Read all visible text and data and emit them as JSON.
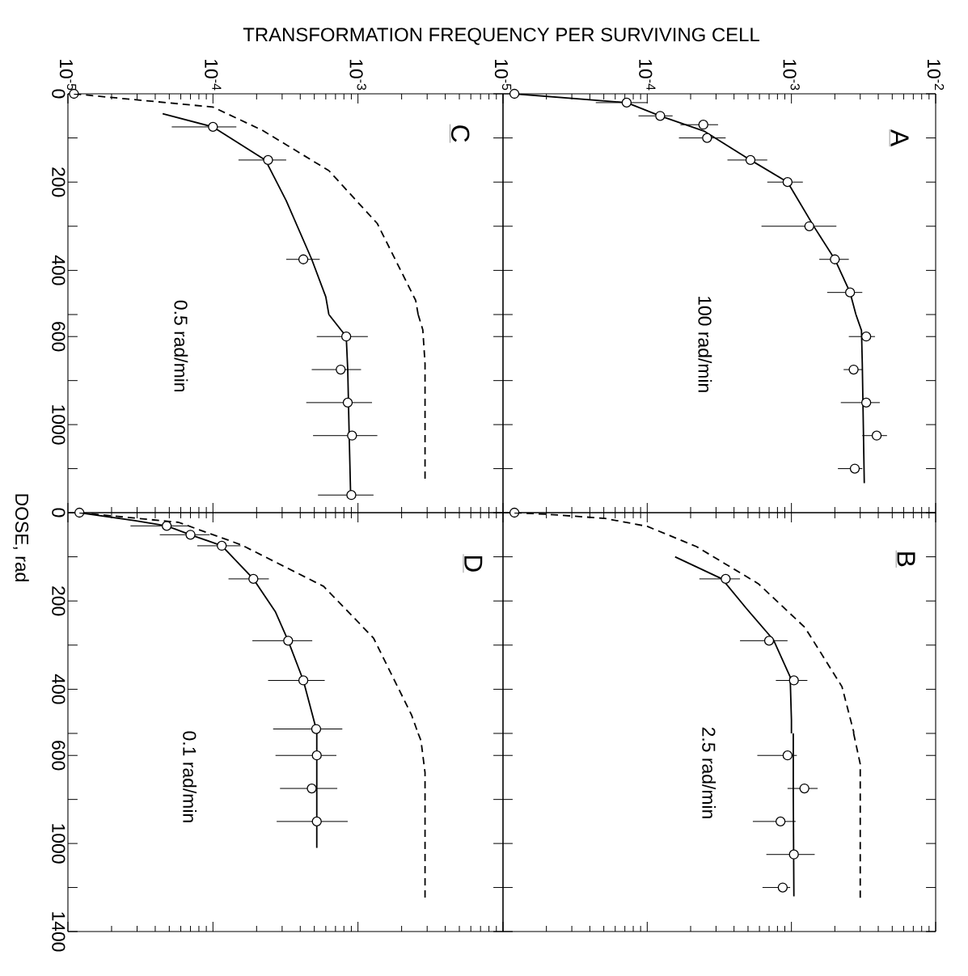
{
  "chart_data": [
    {
      "type": "line",
      "title": "C",
      "xlabel": "TRANSFORMATION FREQUENCY PER SURVIVING CELL",
      "log": "x",
      "xlim": [
        1e-05,
        0.01
      ],
      "ylim": [
        500,
        0
      ],
      "xticks": [
        {
          "value": 1e-05,
          "label": "10$^{-5}$"
        },
        {
          "value": 0.0001,
          "label": "10$^{-4}$"
        },
        {
          "value": 0.001,
          "label": "10$^{-3}$"
        }
      ],
      "yticks": [
        0,
        {
          "value": 100,
          "label": null
        },
        200,
        {
          "value": 300,
          "label": null
        },
        400,
        {
          "value": 500,
          "label": null
        }
      ],
      "series": [
        {
          "type": "line",
          "line_style": "solid",
          "marker": "none",
          "color": "#000000",
          "x": [
            4.5e-05,
            0.0001,
            0.00023,
            0.00032,
            0.00048,
            0.0006,
            0.00063
          ],
          "values": [
            45,
            75,
            150,
            242,
            375,
            460,
            500
          ]
        },
        {
          "type": "scatter",
          "marker": "circle",
          "color": "#000000",
          "x": [
            1.1e-05,
            0.0001,
            0.00024,
            0.00042
          ],
          "values": [
            0,
            75,
            150,
            375
          ],
          "xerrors": [
            null,
            [
              5.2e-05,
              0.000145
            ],
            [
              0.00015,
              0.00032
            ],
            [
              0.00032,
              0.000545
            ]
          ]
        },
        {
          "type": "line",
          "line_style": "dashed",
          "marker": "none",
          "color": "#000000",
          "x": [
            1.1e-05,
            1.95e-05,
            0.0001,
            0.00022,
            0.00063,
            0.00136,
            0.0025,
            0.0026
          ],
          "values": [
            0,
            8,
            30,
            83,
            174,
            294,
            468,
            500
          ]
        }
      ]
    },
    {
      "type": "line",
      "title": "A",
      "log": "x",
      "xlim": [
        1e-05,
        0.01
      ],
      "ylim": [
        500,
        0
      ],
      "tick_labels": "x",
      "xticks": [
        {
          "value": 1e-05,
          "label": "10$^{-5}$"
        },
        {
          "value": 0.0001,
          "label": "10$^{-4}$"
        },
        {
          "value": 0.001,
          "label": "10$^{-3}$"
        },
        {
          "value": 0.01,
          "label": "10$^{-2}$"
        }
      ],
      "yticks": [
        0,
        {
          "value": 100,
          "label": null
        },
        200,
        {
          "value": 300,
          "label": null
        },
        400,
        {
          "value": 500,
          "label": null
        }
      ],
      "series": [
        {
          "type": "line",
          "line_style": "solid",
          "marker": "none",
          "color": "#000000",
          "x": [
            1.2e-05,
            7.2e-05,
            0.000123,
            0.00025,
            0.00052,
            0.00094,
            0.00144,
            0.002,
            0.00255,
            0.0028
          ],
          "values": [
            0,
            20,
            50,
            85,
            150,
            200,
            302,
            375,
            450,
            500
          ]
        },
        {
          "type": "scatter",
          "marker": "circle",
          "color": "#000000",
          "x": [
            1.2e-05,
            7.2e-05,
            0.000123,
            0.000245,
            0.00026,
            0.00052,
            0.00094,
            0.00133,
            0.002,
            0.00255
          ],
          "values": [
            0,
            20,
            50,
            70,
            100,
            150,
            200,
            300,
            375,
            450
          ],
          "xerrors": [
            null,
            [
              4.4e-05,
              0.0001
            ],
            [
              8.7e-05,
              0.00015
            ],
            [
              0.00017,
              0.00031
            ],
            [
              0.000166,
              0.00035
            ],
            [
              0.00036,
              0.00068
            ],
            [
              0.00068,
              0.0012
            ],
            [
              0.00062,
              0.00205
            ],
            [
              0.00156,
              0.0025
            ],
            [
              0.00177,
              0.0031
            ]
          ]
        }
      ]
    },
    {
      "type": "line",
      "annotations": [
        "0.5 rad/min"
      ],
      "log": "x",
      "xlim": [
        1e-05,
        0.01
      ],
      "ylim": [
        1400,
        500
      ],
      "tick_labels": "y",
      "xticks": [
        {
          "value": 1e-05,
          "label": null
        },
        {
          "value": 0.0001,
          "label": null
        },
        {
          "value": 0.001,
          "label": null
        }
      ],
      "yticks": [
        600,
        {
          "value": 800,
          "label": null
        },
        1000,
        {
          "value": 1200,
          "label": null
        },
        {
          "value": 1400,
          "label": null
        }
      ],
      "series": [
        {
          "type": "line",
          "line_style": "solid",
          "marker": "none",
          "color": "#000000",
          "x": [
            0.00063,
            0.00083,
            0.00085,
            0.00087,
            0.00089
          ],
          "values": [
            500,
            600,
            750,
            1050,
            1320
          ]
        },
        {
          "type": "scatter",
          "marker": "circle",
          "color": "#000000",
          "x": [
            0.00083,
            0.00076,
            0.00085,
            0.00091,
            0.0009
          ],
          "values": [
            600,
            750,
            900,
            1050,
            1320
          ],
          "xerrors": [
            [
              0.00052,
              0.00117
            ],
            [
              0.00048,
              0.00105
            ],
            [
              0.00044,
              0.00125
            ],
            [
              0.00049,
              0.00136
            ],
            [
              0.00053,
              0.00128
            ]
          ]
        },
        {
          "type": "line",
          "line_style": "dashed",
          "marker": "none",
          "color": "#000000",
          "x": [
            0.0026,
            0.0028,
            0.0029,
            0.0029
          ],
          "values": [
            500,
            570,
            723,
            1250
          ]
        }
      ]
    },
    {
      "type": "line",
      "annotations": [
        "100 rad/min"
      ],
      "log": "x",
      "xlim": [
        1e-05,
        0.01
      ],
      "ylim": [
        1400,
        500
      ],
      "tick_labels": false,
      "xticks": [
        {
          "value": 1e-05,
          "label": null
        },
        {
          "value": 0.0001,
          "label": null
        },
        {
          "value": 0.001,
          "label": null
        },
        {
          "value": 0.01,
          "label": null
        }
      ],
      "yticks": [
        600,
        {
          "value": 800,
          "label": null
        },
        1000,
        {
          "value": 1200,
          "label": null
        },
        {
          "value": 1400,
          "label": null
        }
      ],
      "series": [
        {
          "type": "line",
          "line_style": "solid",
          "marker": "none",
          "color": "#000000",
          "x": [
            0.0028,
            0.00306,
            0.0031,
            0.0032
          ],
          "values": [
            500,
            572,
            723,
            1266
          ]
        },
        {
          "type": "scatter",
          "marker": "circle",
          "color": "#000000",
          "x": [
            0.0033,
            0.0027,
            0.0033,
            0.0039,
            0.00275
          ],
          "values": [
            600,
            750,
            900,
            1050,
            1200
          ],
          "xerrors": [
            [
              0.0025,
              0.0038
            ],
            [
              0.0023,
              0.0031
            ],
            [
              0.0022,
              0.0041
            ],
            [
              0.0031,
              0.0046
            ],
            [
              0.0021,
              0.0031
            ]
          ]
        }
      ]
    },
    {
      "type": "line",
      "title": "D",
      "ylabel": "DOSE, rad",
      "log": "x",
      "xlim": [
        1e-05,
        0.01
      ],
      "ylim": [
        500,
        0
      ],
      "tick_labels": "y",
      "xticks": [
        {
          "value": 1e-05,
          "label": null
        },
        {
          "value": 0.0001,
          "label": null
        },
        {
          "value": 0.001,
          "label": null
        }
      ],
      "yticks": [
        0,
        {
          "value": 100,
          "label": null
        },
        200,
        {
          "value": 300,
          "label": null
        },
        400,
        {
          "value": 500,
          "label": null
        }
      ],
      "series": [
        {
          "type": "line",
          "line_style": "solid",
          "marker": "none",
          "color": "#000000",
          "x": [
            1.2e-05,
            2.9e-05,
            4.8e-05,
            7e-05,
            0.000115,
            0.00019,
            0.00027,
            0.00033,
            0.00042,
            0.000515,
            0.00052
          ],
          "values": [
            0,
            18,
            30,
            50,
            75,
            150,
            225,
            290,
            380,
            490,
            500
          ]
        },
        {
          "type": "scatter",
          "marker": "circle",
          "color": "#000000",
          "x": [
            1.2e-05,
            4.8e-05,
            7e-05,
            0.000115,
            0.00019,
            0.00033,
            0.00042,
            0.000515
          ],
          "values": [
            0,
            30,
            50,
            75,
            150,
            290,
            380,
            490
          ],
          "xerrors": [
            null,
            [
              2.7e-05,
              6.7e-05
            ],
            [
              4.3e-05,
              9.5e-05
            ],
            [
              7.8e-05,
              0.000155
            ],
            [
              0.000128,
              0.000243
            ],
            [
              0.000187,
              0.000484
            ],
            [
              0.00024,
              0.00059
            ],
            [
              0.00026,
              0.00078
            ]
          ]
        },
        {
          "type": "line",
          "line_style": "dashed",
          "marker": "none",
          "color": "#000000",
          "x": [
            1.2e-05,
            5.8e-05,
            0.000157,
            0.00058,
            0.00128,
            0.00234,
            0.0026
          ],
          "values": [
            0,
            22,
            73,
            167,
            284,
            458,
            500
          ]
        }
      ]
    },
    {
      "type": "line",
      "title": "B",
      "log": "x",
      "xlim": [
        1e-05,
        0.01
      ],
      "ylim": [
        500,
        0
      ],
      "tick_labels": false,
      "xticks": [
        {
          "value": 1e-05,
          "label": null
        },
        {
          "value": 0.0001,
          "label": null
        },
        {
          "value": 0.001,
          "label": null
        },
        {
          "value": 0.01,
          "label": null
        }
      ],
      "yticks": [
        0,
        {
          "value": 100,
          "label": null
        },
        200,
        {
          "value": 300,
          "label": null
        },
        400,
        {
          "value": 500,
          "label": null
        }
      ],
      "series": [
        {
          "type": "line",
          "line_style": "solid",
          "marker": "none",
          "color": "#000000",
          "x": [
            0.000156,
            0.00033,
            0.00049,
            0.00075,
            0.00098,
            0.001,
            0.001
          ],
          "values": [
            100,
            150,
            218,
            288,
            372,
            470,
            500
          ]
        },
        {
          "type": "scatter",
          "marker": "circle",
          "color": "#000000",
          "x": [
            1.2e-05,
            0.00035,
            0.0007,
            0.00104
          ],
          "values": [
            0,
            150,
            290,
            380
          ],
          "xerrors": [
            null,
            [
              0.00023,
              0.00044
            ],
            [
              0.00044,
              0.00094
            ],
            [
              0.00078,
              0.00129
            ]
          ]
        },
        {
          "type": "line",
          "line_style": "dashed",
          "marker": "none",
          "color": "#000000",
          "x": [
            1.2e-05,
            2.1e-05,
            5.1e-05,
            0.0001,
            0.00022,
            0.00059,
            0.00124,
            0.00224,
            0.0027,
            0.0027
          ],
          "values": [
            0,
            4,
            13,
            31,
            77,
            161,
            260,
            394,
            496,
            500
          ]
        }
      ]
    },
    {
      "type": "line",
      "annotations": [
        "0.1 rad/min"
      ],
      "log": "x",
      "xlim": [
        1e-05,
        0.01
      ],
      "ylim": [
        1400,
        500
      ],
      "tick_labels": "y",
      "xticks": [
        {
          "value": 1e-05,
          "label": null
        },
        {
          "value": 0.0001,
          "label": null
        },
        {
          "value": 0.001,
          "label": null
        }
      ],
      "yticks": [
        600,
        {
          "value": 800,
          "label": null
        },
        1000,
        {
          "value": 1200,
          "label": null
        },
        1400
      ],
      "series": [
        {
          "type": "line",
          "line_style": "solid",
          "marker": "none",
          "color": "#000000",
          "x": [
            0.00052,
            0.00052,
            0.00052
          ],
          "values": [
            500,
            600,
            1020
          ]
        },
        {
          "type": "scatter",
          "marker": "circle",
          "color": "#000000",
          "x": [
            0.00052,
            0.00048,
            0.00052
          ],
          "values": [
            600,
            750,
            900
          ],
          "xerrors": [
            [
              0.00027,
              0.00071
            ],
            [
              0.00029,
              0.00072
            ],
            [
              0.000275,
              0.00085
            ]
          ]
        },
        {
          "type": "line",
          "line_style": "dashed",
          "marker": "none",
          "color": "#000000",
          "x": [
            0.0026,
            0.00272,
            0.0029,
            0.0029
          ],
          "values": [
            500,
            533,
            678,
            1250
          ]
        }
      ]
    },
    {
      "type": "line",
      "annotations": [
        "2.5 rad/min"
      ],
      "log": "x",
      "xlim": [
        1e-05,
        0.01
      ],
      "ylim": [
        1400,
        500
      ],
      "tick_labels": false,
      "xticks": [
        {
          "value": 1e-05,
          "label": null
        },
        {
          "value": 0.0001,
          "label": null
        },
        {
          "value": 0.001,
          "label": null
        },
        {
          "value": 0.01,
          "label": null
        }
      ],
      "yticks": [
        600,
        {
          "value": 800,
          "label": null
        },
        1000,
        {
          "value": 1200,
          "label": null
        },
        1400
      ],
      "series": [
        {
          "type": "line",
          "line_style": "solid",
          "marker": "none",
          "color": "#000000",
          "x": [
            0.00103,
            0.00103,
            0.00104
          ],
          "values": [
            500,
            780,
            1240
          ]
        },
        {
          "type": "scatter",
          "marker": "circle",
          "color": "#000000",
          "x": [
            0.00094,
            0.00123,
            0.00084,
            0.00104,
            0.00087
          ],
          "values": [
            600,
            750,
            900,
            1050,
            1200
          ],
          "xerrors": [
            [
              0.00058,
              0.00109
            ],
            [
              0.00094,
              0.00152
            ],
            [
              0.00054,
              0.00107
            ],
            [
              0.00067,
              0.00145
            ],
            [
              0.00063,
              0.00098
            ]
          ]
        },
        {
          "type": "line",
          "line_style": "dashed",
          "marker": "none",
          "color": "#000000",
          "x": [
            0.0027,
            0.003,
            0.003
          ],
          "values": [
            500,
            639,
            1250
          ]
        }
      ]
    }
  ]
}
